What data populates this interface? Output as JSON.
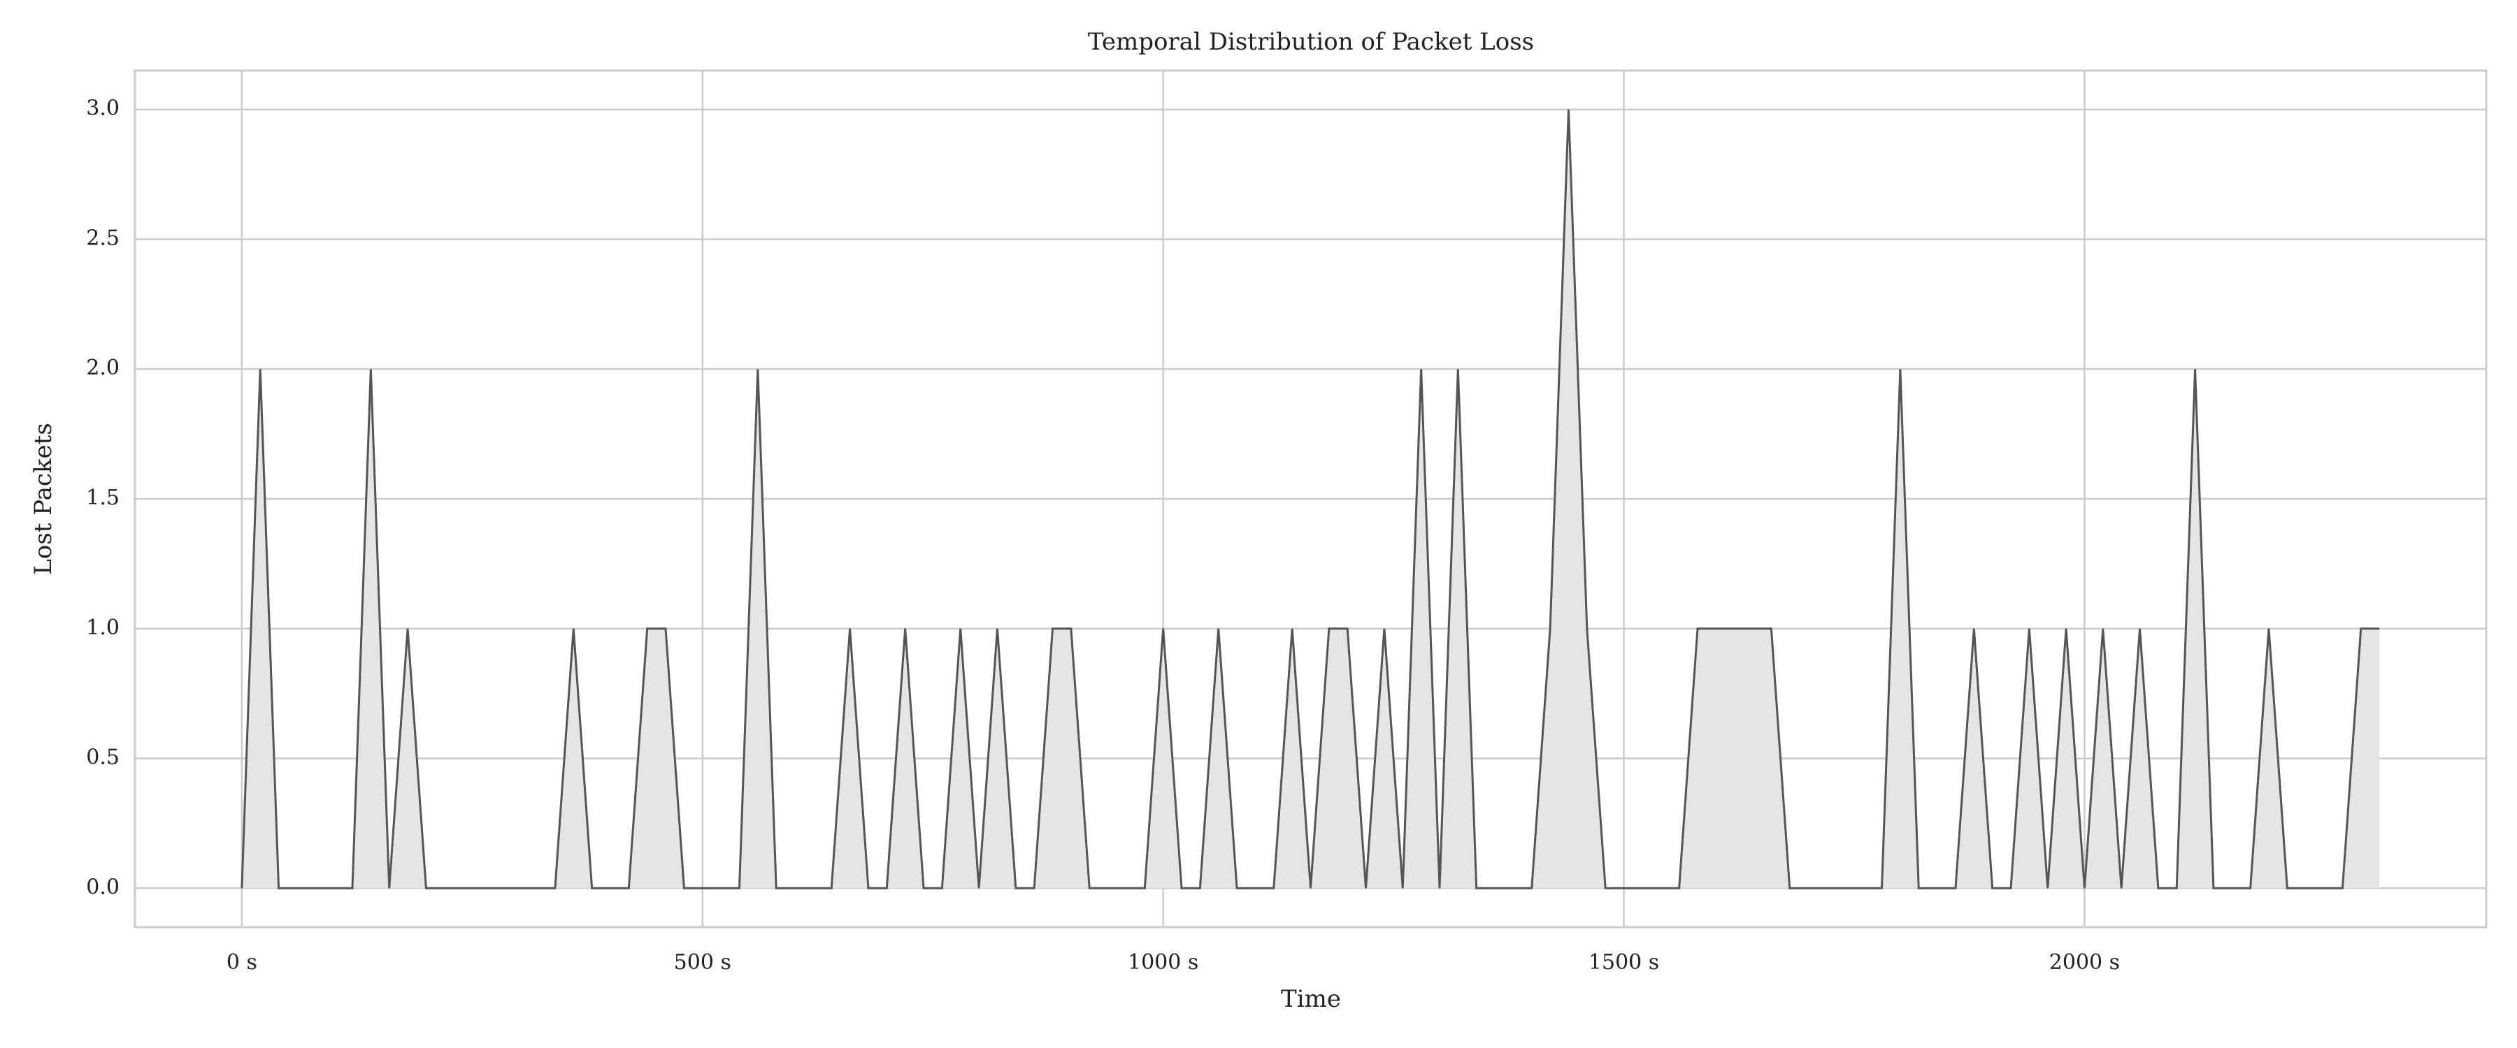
{
  "chart_data": {
    "type": "area",
    "title": "Temporal Distribution of Packet Loss",
    "xlabel": "Time",
    "ylabel": "Lost Packets",
    "x": [
      0,
      20,
      40,
      60,
      80,
      100,
      120,
      140,
      160,
      180,
      200,
      220,
      240,
      260,
      280,
      300,
      320,
      340,
      360,
      380,
      400,
      420,
      440,
      460,
      480,
      500,
      520,
      540,
      560,
      580,
      600,
      620,
      640,
      660,
      680,
      700,
      720,
      740,
      760,
      780,
      800,
      820,
      840,
      860,
      880,
      900,
      920,
      940,
      960,
      980,
      1000,
      1020,
      1040,
      1060,
      1080,
      1100,
      1120,
      1140,
      1160,
      1180,
      1200,
      1220,
      1240,
      1260,
      1280,
      1300,
      1320,
      1340,
      1360,
      1380,
      1400,
      1420,
      1440,
      1460,
      1480,
      1500,
      1520,
      1540,
      1560,
      1580,
      1600,
      1620,
      1640,
      1660,
      1680,
      1700,
      1720,
      1740,
      1760,
      1780,
      1800,
      1820,
      1840,
      1860,
      1880,
      1900,
      1920,
      1940,
      1960,
      1980,
      2000,
      2020,
      2040,
      2060,
      2080,
      2100,
      2120,
      2140,
      2160,
      2180,
      2200,
      2220,
      2240,
      2260,
      2280,
      2300,
      2320
    ],
    "values": [
      0,
      2,
      0,
      0,
      0,
      0,
      0,
      2,
      0,
      1,
      0,
      0,
      0,
      0,
      0,
      0,
      0,
      0,
      1,
      0,
      0,
      0,
      1,
      1,
      0,
      0,
      0,
      0,
      2,
      0,
      0,
      0,
      0,
      1,
      0,
      0,
      1,
      0,
      0,
      1,
      0,
      1,
      0,
      0,
      1,
      1,
      0,
      0,
      0,
      0,
      1,
      0,
      0,
      1,
      0,
      0,
      0,
      1,
      0,
      1,
      1,
      0,
      1,
      0,
      2,
      0,
      2,
      0,
      0,
      0,
      0,
      1,
      3,
      1,
      0,
      0,
      0,
      0,
      0,
      1,
      1,
      1,
      1,
      1,
      0,
      0,
      0,
      0,
      0,
      0,
      2,
      0,
      0,
      0,
      1,
      0,
      0,
      1,
      0,
      1,
      0,
      1,
      0,
      1,
      0,
      0,
      2,
      0,
      0,
      0,
      1,
      0,
      0,
      0,
      0,
      1,
      1
    ],
    "color": "#555555",
    "fill_color": "#e5e5e5",
    "xlim": [
      -116,
      2436
    ],
    "xticks": [
      {
        "value": 0,
        "label": "0 s"
      },
      {
        "value": 500,
        "label": "500 s"
      },
      {
        "value": 1000,
        "label": "1000 s"
      },
      {
        "value": 1500,
        "label": "1500 s"
      },
      {
        "value": 2000,
        "label": "2000 s"
      }
    ],
    "ylim": [
      -0.15,
      3.15
    ],
    "yticks": [
      {
        "value": 0,
        "label": "0.0"
      },
      {
        "value": 0.5,
        "label": "0.5"
      },
      {
        "value": 1,
        "label": "1.0"
      },
      {
        "value": 1.5,
        "label": "1.5"
      },
      {
        "value": 2,
        "label": "2.0"
      },
      {
        "value": 2.5,
        "label": "2.5"
      },
      {
        "value": 3,
        "label": "3.0"
      }
    ],
    "grid": true
  }
}
